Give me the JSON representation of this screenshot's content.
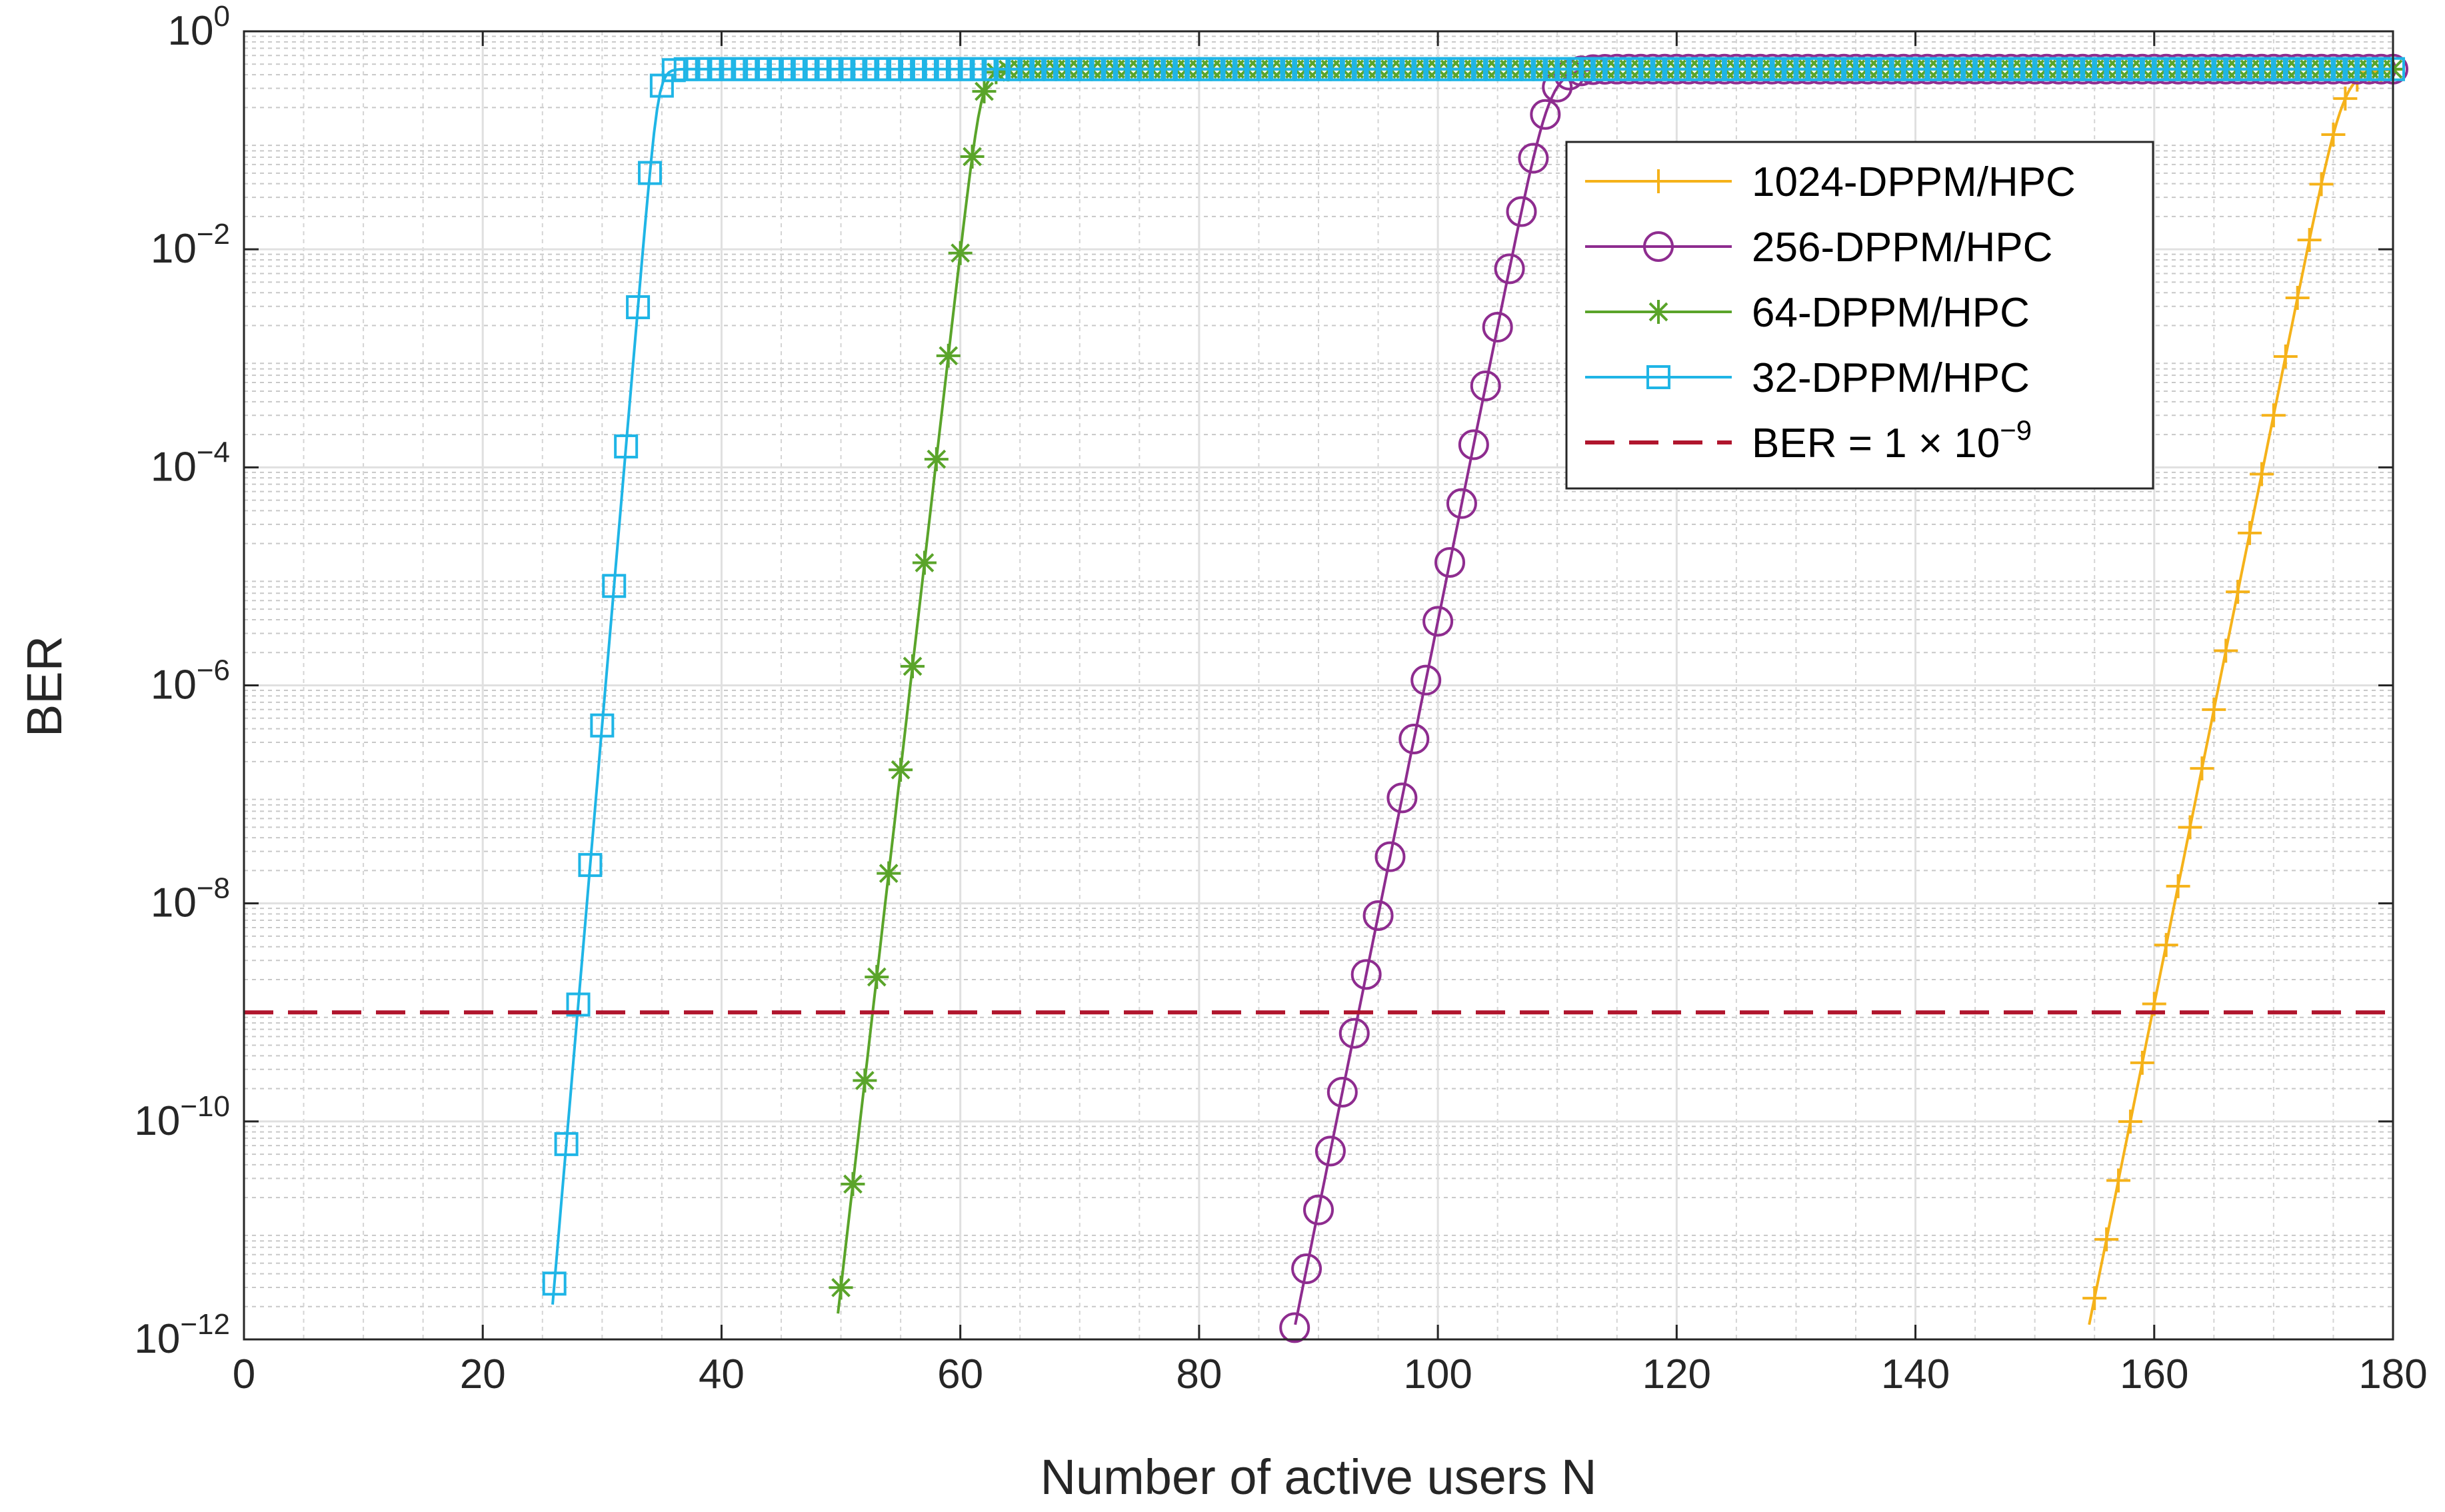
{
  "chart_data": {
    "type": "line",
    "title": "",
    "xlabel": "Number of active users N",
    "ylabel": "BER",
    "xlim": [
      0,
      180
    ],
    "ylim_log10": [
      -12,
      0
    ],
    "x_ticks": [
      "0",
      "20",
      "40",
      "60",
      "80",
      "100",
      "120",
      "140",
      "160",
      "180"
    ],
    "y_ticks": [
      {
        "base": "10",
        "exp": "0"
      },
      {
        "base": "10",
        "exp": "-2"
      },
      {
        "base": "10",
        "exp": "-4"
      },
      {
        "base": "10",
        "exp": "-6"
      },
      {
        "base": "10",
        "exp": "-8"
      },
      {
        "base": "10",
        "exp": "-10"
      },
      {
        "base": "10",
        "exp": "-12"
      }
    ],
    "grid": true,
    "legend_position": "top-right",
    "series": [
      {
        "name": "1024-DPPM/HPC",
        "color": "#f5b21a",
        "marker": "plus",
        "curve": {
          "x_at_1e-12": 154.3,
          "slope_decades_per_user": 0.54,
          "x_saturate": 180,
          "saturation_ber": 0.45
        },
        "x_start": 154
      },
      {
        "name": "256-DPPM/HPC",
        "color": "#8e2c8f",
        "marker": "circle",
        "curve": {
          "x_at_1e-12": 87.8,
          "slope_decades_per_user": 0.54,
          "x_saturate": 108,
          "saturation_ber": 0.45
        },
        "x_start": 88
      },
      {
        "name": "64-DPPM/HPC",
        "color": "#5aa42a",
        "marker": "asterisk",
        "curve": {
          "x_at_1e-12": 49.5,
          "slope_decades_per_user": 0.95,
          "x_saturate": 63,
          "saturation_ber": 0.45
        },
        "x_start": 50
      },
      {
        "name": "32-DPPM/HPC",
        "color": "#1fb5e6",
        "marker": "square",
        "curve": {
          "x_at_1e-12": 25.6,
          "slope_decades_per_user": 1.28,
          "x_saturate": 36.5,
          "saturation_ber": 0.45
        },
        "x_start": 26
      }
    ],
    "reference_line": {
      "label_prefix": "BER = 1 × 10",
      "label_exp": "−9",
      "value": 1e-09,
      "color": "#b0152d",
      "style": "dashed"
    }
  }
}
